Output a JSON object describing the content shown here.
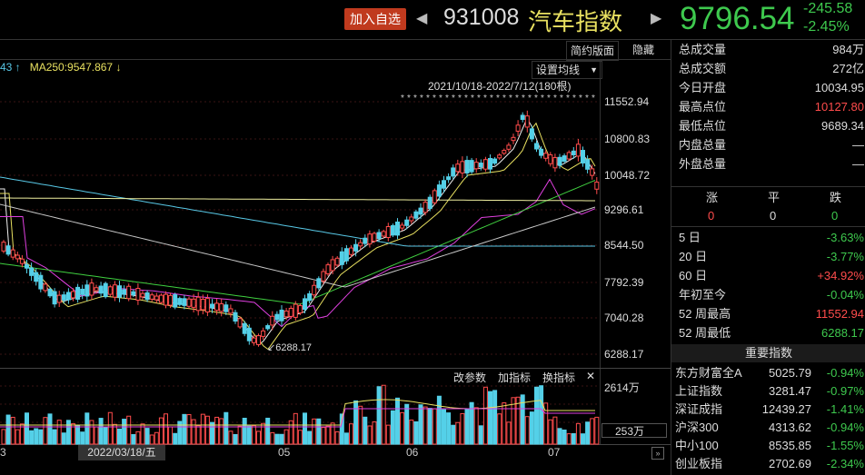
{
  "header": {
    "add_watch": "加入自选",
    "prev_arrow": "◀",
    "next_arrow": "▶",
    "code": "931008",
    "name": "汽车指数",
    "price": "9796.54",
    "change": "-245.58",
    "change_pct": "-2.45%"
  },
  "toolbar": {
    "simple_layout": "简约版面",
    "hide": "隐藏",
    "set_ma": "设置均线",
    "set_ma_arrow": "▼",
    "date_range": "2021/10/18-2022/7/12(180根)"
  },
  "ma_legend": {
    "prefix": "43 ↑",
    "ma250": "MA250:9547.867 ↓"
  },
  "y_axis": [
    "11552.94",
    "10800.83",
    "10048.72",
    "9296.61",
    "8544.50",
    "7792.39",
    "7040.28",
    "6288.17"
  ],
  "low_marker": "6288.17",
  "sub_toolbar": {
    "params": "改参数",
    "add_indicator": "加指标",
    "switch_indicator": "换指标",
    "close": "✕"
  },
  "volume_axis": {
    "top": "2614万",
    "current": "253万"
  },
  "x_axis": {
    "left_edge": "3",
    "cursor_date": "2022/03/18/五",
    "m05": "05",
    "m06": "06",
    "m07": "07"
  },
  "stats": [
    {
      "label": "总成交量",
      "value": "984万",
      "color": "white"
    },
    {
      "label": "总成交额",
      "value": "272亿",
      "color": "white"
    },
    {
      "label": "今日开盘",
      "value": "10034.95",
      "color": "white"
    },
    {
      "label": "最高点位",
      "value": "10127.80",
      "color": "red"
    },
    {
      "label": "最低点位",
      "value": "9689.34",
      "color": "white"
    },
    {
      "label": "内盘总量",
      "value": "—",
      "color": "white"
    },
    {
      "label": "外盘总量",
      "value": "—",
      "color": "white"
    }
  ],
  "breadth": {
    "up_label": "涨",
    "flat_label": "平",
    "down_label": "跌",
    "up": "0",
    "flat": "0",
    "down": "0"
  },
  "performance": [
    {
      "label": "5 日",
      "value": "-3.63%",
      "color": "green"
    },
    {
      "label": "20 日",
      "value": "-3.77%",
      "color": "green"
    },
    {
      "label": "60 日",
      "value": "+34.92%",
      "color": "red"
    },
    {
      "label": "年初至今",
      "value": "-0.04%",
      "color": "green"
    },
    {
      "label": "52 周最高",
      "value": "11552.94",
      "color": "red"
    },
    {
      "label": "52 周最低",
      "value": "6288.17",
      "color": "green"
    }
  ],
  "indices_title": "重要指数",
  "indices": [
    {
      "name": "东方财富全A",
      "value": "5025.79",
      "pct": "-0.94%"
    },
    {
      "name": "上证指数",
      "value": "3281.47",
      "pct": "-0.97%"
    },
    {
      "name": "深证成指",
      "value": "12439.27",
      "pct": "-1.41%"
    },
    {
      "name": "沪深300",
      "value": "4313.62",
      "pct": "-0.94%"
    },
    {
      "name": "中小100",
      "value": "8535.85",
      "pct": "-1.55%"
    },
    {
      "name": "创业板指",
      "value": "2702.69",
      "pct": "-2.34%"
    }
  ],
  "colors": {
    "up": "#ff4c4c",
    "down": "#3ec94e",
    "accent": "#c03a1e"
  }
}
